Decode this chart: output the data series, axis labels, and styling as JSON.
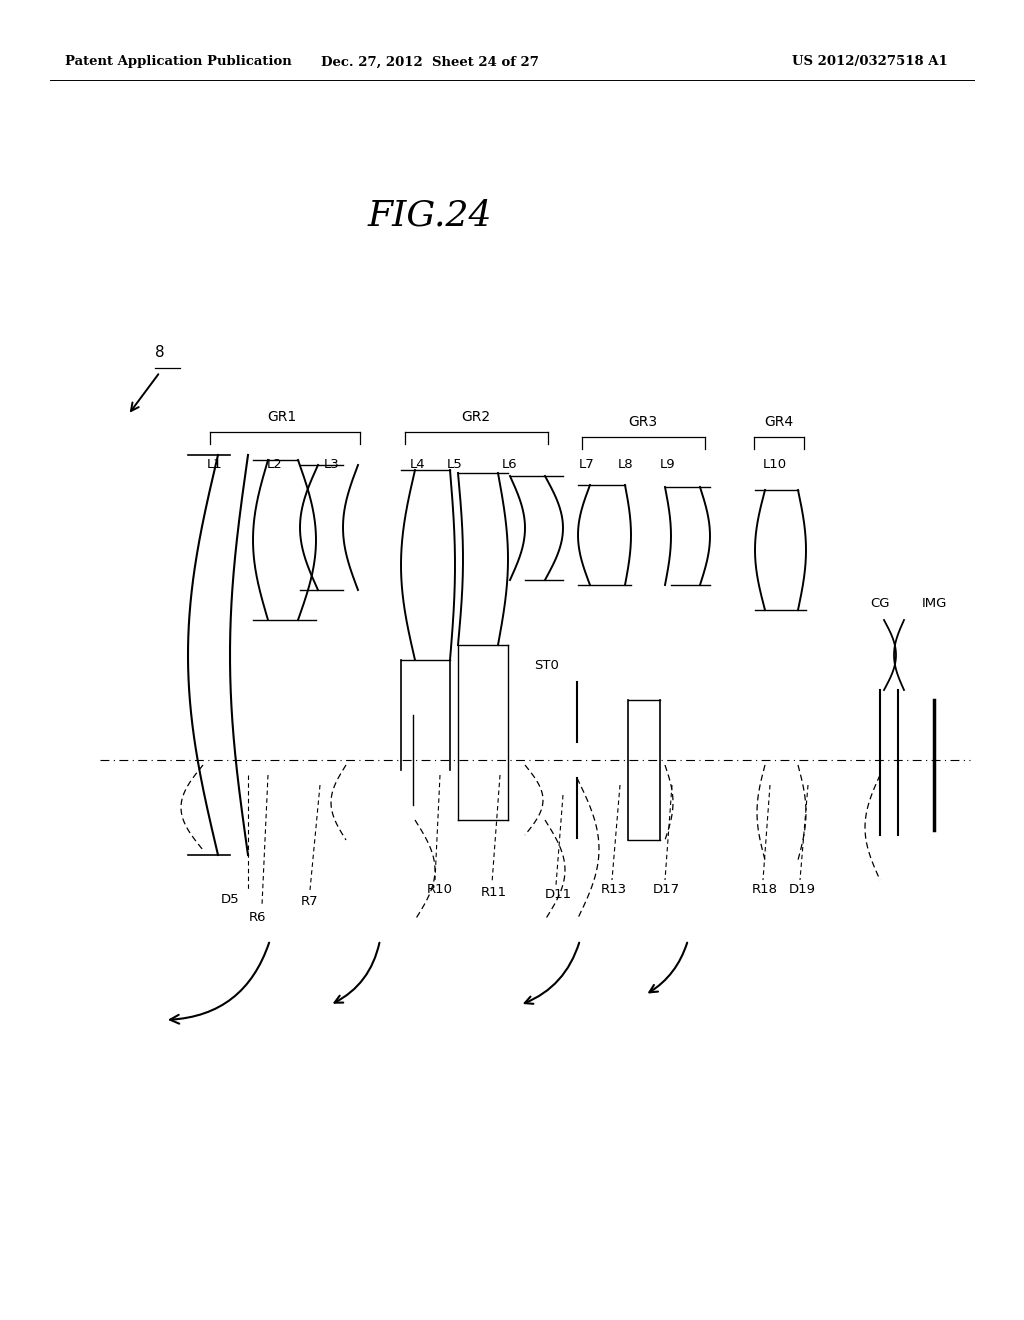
{
  "title": "FIG.24",
  "header_left": "Patent Application Publication",
  "header_mid": "Dec. 27, 2012  Sheet 24 of 27",
  "header_right": "US 2012/0327518 A1",
  "background_color": "#ffffff",
  "line_color": "#000000"
}
